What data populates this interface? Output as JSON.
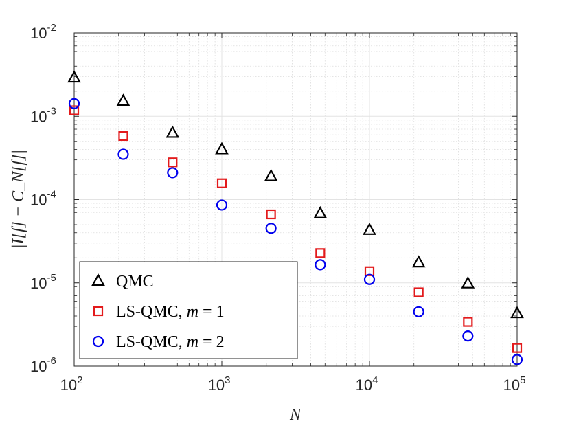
{
  "chart_data": {
    "type": "scatter",
    "title": "",
    "xlabel": "N",
    "ylabel": "|I[f] − C_N[f]|",
    "xscale": "log",
    "yscale": "log",
    "xlim": [
      100,
      100000
    ],
    "ylim": [
      1e-06,
      0.01
    ],
    "grid": true,
    "minor_grid": true,
    "legend_position": "bottom-left",
    "x_ticks": [
      {
        "base": "10",
        "exp": "2",
        "value": 100
      },
      {
        "base": "10",
        "exp": "3",
        "value": 1000
      },
      {
        "base": "10",
        "exp": "4",
        "value": 10000
      },
      {
        "base": "10",
        "exp": "5",
        "value": 100000
      }
    ],
    "y_ticks": [
      {
        "base": "10",
        "exp": "-6",
        "value": 1e-06
      },
      {
        "base": "10",
        "exp": "-5",
        "value": 1e-05
      },
      {
        "base": "10",
        "exp": "-4",
        "value": 0.0001
      },
      {
        "base": "10",
        "exp": "-3",
        "value": 0.001
      },
      {
        "base": "10",
        "exp": "-2",
        "value": 0.01
      }
    ],
    "x": [
      100,
      215,
      464,
      1000,
      2154,
      4642,
      10000,
      21544,
      46416,
      100000
    ],
    "series": [
      {
        "name": "QMC",
        "marker": "triangle",
        "color": "#000000",
        "values": [
          0.0029,
          0.00152,
          0.00063,
          0.0004,
          0.00019,
          6.8e-05,
          4.3e-05,
          1.75e-05,
          9.8e-06,
          4.3e-06
        ]
      },
      {
        "name": "LS-QMC, m = 1",
        "marker": "square",
        "color": "#e31a1c",
        "values": [
          0.00118,
          0.00058,
          0.00028,
          0.000157,
          6.65e-05,
          2.28e-05,
          1.38e-05,
          7.7e-06,
          3.4e-06,
          1.65e-06
        ]
      },
      {
        "name": "LS-QMC, m = 2",
        "marker": "circle",
        "color": "#0000ee",
        "values": [
          0.00142,
          0.00035,
          0.00021,
          8.6e-05,
          4.52e-05,
          1.65e-05,
          1.1e-05,
          4.5e-06,
          2.3e-06,
          1.2e-06
        ]
      }
    ],
    "legend": [
      {
        "prefix": "QMC",
        "var": "",
        "suffix": ""
      },
      {
        "prefix": "LS-QMC, ",
        "var": "m",
        "suffix": " = 1"
      },
      {
        "prefix": "LS-QMC, ",
        "var": "m",
        "suffix": " = 2"
      }
    ]
  }
}
